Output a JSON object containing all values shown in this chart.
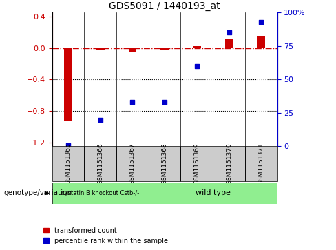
{
  "title": "GDS5091 / 1440193_at",
  "samples": [
    "GSM1151365",
    "GSM1151366",
    "GSM1151367",
    "GSM1151368",
    "GSM1151369",
    "GSM1151370",
    "GSM1151371"
  ],
  "red_values": [
    -0.92,
    -0.02,
    -0.05,
    -0.02,
    0.02,
    0.12,
    0.15
  ],
  "blue_values": [
    0.5,
    20.0,
    33.0,
    33.0,
    60.0,
    85.0,
    93.0
  ],
  "ylim_left": [
    -1.25,
    0.45
  ],
  "ylim_right": [
    0,
    100
  ],
  "yticks_left": [
    0.4,
    0.0,
    -0.4,
    -0.8,
    -1.2
  ],
  "yticks_right": [
    100,
    75,
    50,
    25,
    0
  ],
  "groups": [
    {
      "label": "cystatin B knockout Cstb-/-",
      "color": "#90ee90",
      "start": 0,
      "end": 3
    },
    {
      "label": "wild type",
      "color": "#90ee90",
      "start": 3,
      "end": 7
    }
  ],
  "genotype_label": "genotype/variation",
  "legend_red": "transformed count",
  "legend_blue": "percentile rank within the sample",
  "red_color": "#cc0000",
  "blue_color": "#0000cc",
  "bar_width": 0.25,
  "dotted_lines": [
    -0.4,
    -0.8
  ]
}
